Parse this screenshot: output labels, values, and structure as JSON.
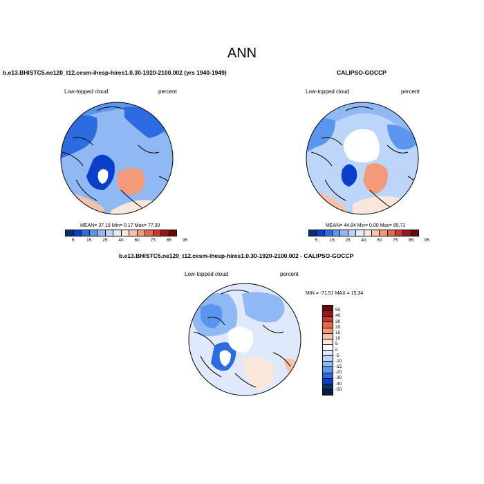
{
  "title": "ANN",
  "panels": [
    {
      "title": "b.e13.BHISTC5.ne120_t12.cesm-ihesp-hires1.0.30-1920-2100.002 (yrs 1940-1949)",
      "left_label": "Low-topped cloud",
      "right_label": "percent",
      "stats": "MEAN=  37.19  Min=   0.17  Max=  77.30",
      "colorbar": {
        "ticks": [
          "5",
          "15",
          "25",
          "40",
          "60",
          "75",
          "85",
          "95"
        ],
        "colors": [
          "#08306b",
          "#0a3fc9",
          "#2c6be0",
          "#5b95ee",
          "#8fb8f4",
          "#bcd5f8",
          "#dfe9fb",
          "#fbe6dc",
          "#f8c2a8",
          "#f39a7b",
          "#e4684e",
          "#c83a2b",
          "#9b1616",
          "#6b0808"
        ]
      }
    },
    {
      "title": "CALIPSO-GOCCP",
      "left_label": "Low-topped cloud",
      "right_label": "percent",
      "stats": "MEAN=  44.84  Min=   0.00  Max=  85.71",
      "colorbar": {
        "ticks": [
          "5",
          "15",
          "25",
          "40",
          "60",
          "75",
          "85",
          "95"
        ],
        "colors": [
          "#08306b",
          "#0a3fc9",
          "#2c6be0",
          "#5b95ee",
          "#8fb8f4",
          "#bcd5f8",
          "#dfe9fb",
          "#fbe6dc",
          "#f8c2a8",
          "#f39a7b",
          "#e4684e",
          "#c83a2b",
          "#9b1616",
          "#6b0808"
        ]
      }
    },
    {
      "title": "b.e13.BHISTC5.ne120_t12.cesm-ihesp-hires1.0.30-1920-2100.002 - CALIPSO-GOCCP",
      "left_label": "Low-topped cloud",
      "right_label": "percent",
      "stats": "MIN = -71.51 MAX =  15.34",
      "colorbar": {
        "ticks": [
          "50",
          "40",
          "30",
          "20",
          "15",
          "10",
          "5",
          "0",
          "-5",
          "-10",
          "-15",
          "-20",
          "-30",
          "-40",
          "-50"
        ],
        "colors": [
          "#6b0808",
          "#9b1616",
          "#c83a2b",
          "#e4684e",
          "#f39a7b",
          "#f8c2a8",
          "#fbe6dc",
          "#ffffff",
          "#dfe9fb",
          "#bcd5f8",
          "#8fb8f4",
          "#5b95ee",
          "#2c6be0",
          "#0a3fc9",
          "#08306b",
          "#051c4a"
        ]
      }
    }
  ]
}
